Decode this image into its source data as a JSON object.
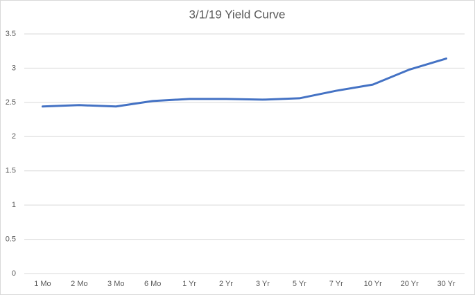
{
  "chart_data": {
    "type": "line",
    "title": "3/1/19 Yield Curve",
    "categories": [
      "1 Mo",
      "2 Mo",
      "3 Mo",
      "6 Mo",
      "1 Yr",
      "2 Yr",
      "3 Yr",
      "5 Yr",
      "7 Yr",
      "10 Yr",
      "20 Yr",
      "30 Yr"
    ],
    "values": [
      2.44,
      2.46,
      2.44,
      2.52,
      2.55,
      2.55,
      2.54,
      2.56,
      2.67,
      2.76,
      2.98,
      3.14
    ],
    "color": "#4472c4",
    "ylim": [
      0,
      3.5
    ],
    "yticks": [
      0,
      0.5,
      1,
      1.5,
      2,
      2.5,
      3,
      3.5
    ],
    "grid": true
  }
}
